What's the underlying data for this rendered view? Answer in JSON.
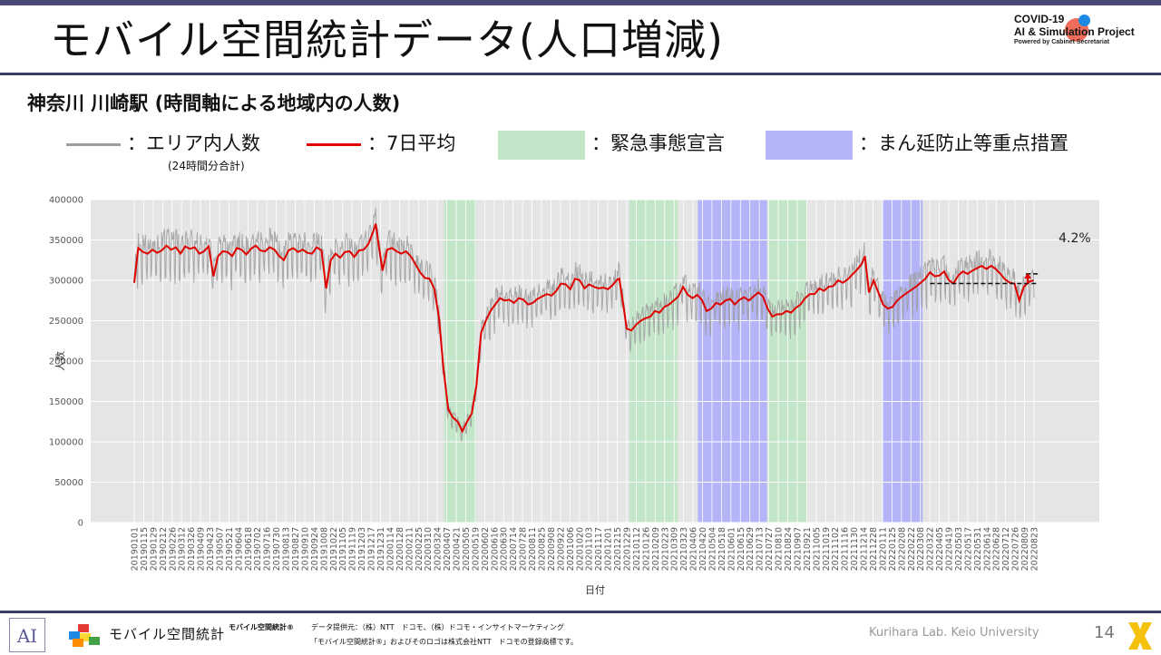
{
  "header": {
    "title": "モバイル空間統計データ(人口増減)",
    "logo": {
      "line1": "COVID-19",
      "line2": "AI & Simulation Project",
      "line3": "Powered by Cabinet Secretariat"
    }
  },
  "subtitle": "神奈川 川崎駅 (時間軸による地域内の人数)",
  "legend": {
    "area_label": "：エリア内人数",
    "area_note": "(24時間分合計)",
    "avg_label": "：7日平均",
    "emergency_label": "：緊急事態宣言",
    "priority_label": "：まん延防止等重点措置"
  },
  "colors": {
    "title_bar": "#3c3c6c",
    "raw_line": "#9e9e9e",
    "avg_line": "#e00000",
    "emergency": "#c3e6c8",
    "priority": "#b4b4f8",
    "plot_bg": "#e5e5e5"
  },
  "chart_data": {
    "type": "line",
    "title": "",
    "xlabel": "日付",
    "ylabel": "人数",
    "ylim": [
      0,
      400000
    ],
    "yticks": [
      0,
      50000,
      100000,
      150000,
      200000,
      250000,
      300000,
      350000,
      400000
    ],
    "ytick_labels": [
      "0",
      "50000",
      "100000",
      "150000",
      "200000",
      "250000",
      "300000",
      "350000",
      "400000"
    ],
    "x_start": "2019-01-01",
    "x_end": "2022-09-03",
    "xtick_labels": [
      "20190101",
      "20190115",
      "20190129",
      "20190212",
      "20190226",
      "20190312",
      "20190326",
      "20190409",
      "20190423",
      "20190507",
      "20190521",
      "20190604",
      "20190618",
      "20190702",
      "20190716",
      "20190730",
      "20190813",
      "20190827",
      "20190910",
      "20190924",
      "20191008",
      "20191022",
      "20191105",
      "20191119",
      "20191203",
      "20191217",
      "20191231",
      "20200114",
      "20200128",
      "20200211",
      "20200225",
      "20200310",
      "20200324",
      "20200407",
      "20200421",
      "20200505",
      "20200519",
      "20200602",
      "20200616",
      "20200630",
      "20200714",
      "20200728",
      "20200811",
      "20200825",
      "20200908",
      "20200922",
      "20201006",
      "20201020",
      "20201103",
      "20201117",
      "20201201",
      "20201215",
      "20201229",
      "20210112",
      "20210126",
      "20210209",
      "20210223",
      "20210309",
      "20210323",
      "20210406",
      "20210420",
      "20210504",
      "20210518",
      "20210601",
      "20210615",
      "20210629",
      "20210713",
      "20210727",
      "20210810",
      "20210824",
      "20210907",
      "20210921",
      "20211005",
      "20211019",
      "20211102",
      "20211116",
      "20211130",
      "20211214",
      "20211228",
      "20220111",
      "20220125",
      "20220208",
      "20220222",
      "20220308",
      "20220322",
      "20220405",
      "20220419",
      "20220503",
      "20220517",
      "20220531",
      "20220614",
      "20220628",
      "20220712",
      "20220726",
      "20220809",
      "20220823"
    ],
    "emergency_periods": [
      [
        "2020-04-07",
        "2020-05-25"
      ],
      [
        "2021-01-08",
        "2021-03-21"
      ],
      [
        "2021-08-02",
        "2021-09-30"
      ]
    ],
    "priority_periods": [
      [
        "2021-04-20",
        "2021-08-01"
      ],
      [
        "2022-01-21",
        "2022-03-21"
      ]
    ],
    "series": [
      {
        "key": "avg",
        "points": [
          [
            "2019-01-01",
            297000
          ],
          [
            "2019-01-07",
            340000
          ],
          [
            "2019-01-14",
            335000
          ],
          [
            "2019-01-21",
            333000
          ],
          [
            "2019-01-28",
            338000
          ],
          [
            "2019-02-04",
            334000
          ],
          [
            "2019-02-11",
            337000
          ],
          [
            "2019-02-18",
            343000
          ],
          [
            "2019-02-25",
            338000
          ],
          [
            "2019-03-04",
            341000
          ],
          [
            "2019-03-11",
            333000
          ],
          [
            "2019-03-18",
            342000
          ],
          [
            "2019-03-25",
            339000
          ],
          [
            "2019-04-01",
            341000
          ],
          [
            "2019-04-08",
            333000
          ],
          [
            "2019-04-15",
            336000
          ],
          [
            "2019-04-22",
            342000
          ],
          [
            "2019-04-29",
            305000
          ],
          [
            "2019-05-06",
            330000
          ],
          [
            "2019-05-13",
            336000
          ],
          [
            "2019-05-20",
            335000
          ],
          [
            "2019-05-27",
            330000
          ],
          [
            "2019-06-03",
            340000
          ],
          [
            "2019-06-10",
            338000
          ],
          [
            "2019-06-17",
            332000
          ],
          [
            "2019-06-24",
            339000
          ],
          [
            "2019-07-01",
            343000
          ],
          [
            "2019-07-08",
            337000
          ],
          [
            "2019-07-15",
            336000
          ],
          [
            "2019-07-22",
            341000
          ],
          [
            "2019-07-29",
            338000
          ],
          [
            "2019-08-05",
            330000
          ],
          [
            "2019-08-12",
            325000
          ],
          [
            "2019-08-19",
            337000
          ],
          [
            "2019-08-26",
            340000
          ],
          [
            "2019-09-02",
            335000
          ],
          [
            "2019-09-09",
            338000
          ],
          [
            "2019-09-16",
            334000
          ],
          [
            "2019-09-23",
            333000
          ],
          [
            "2019-09-30",
            341000
          ],
          [
            "2019-10-07",
            337000
          ],
          [
            "2019-10-14",
            290000
          ],
          [
            "2019-10-21",
            325000
          ],
          [
            "2019-10-28",
            333000
          ],
          [
            "2019-11-04",
            328000
          ],
          [
            "2019-11-11",
            335000
          ],
          [
            "2019-11-18",
            336000
          ],
          [
            "2019-11-25",
            329000
          ],
          [
            "2019-12-02",
            337000
          ],
          [
            "2019-12-09",
            338000
          ],
          [
            "2019-12-16",
            345000
          ],
          [
            "2019-12-23",
            360000
          ],
          [
            "2019-12-27",
            370000
          ],
          [
            "2019-12-31",
            345000
          ],
          [
            "2020-01-06",
            312000
          ],
          [
            "2020-01-13",
            338000
          ],
          [
            "2020-01-20",
            340000
          ],
          [
            "2020-01-27",
            336000
          ],
          [
            "2020-02-03",
            333000
          ],
          [
            "2020-02-10",
            336000
          ],
          [
            "2020-02-17",
            330000
          ],
          [
            "2020-02-24",
            320000
          ],
          [
            "2020-03-02",
            310000
          ],
          [
            "2020-03-09",
            303000
          ],
          [
            "2020-03-16",
            302000
          ],
          [
            "2020-03-23",
            290000
          ],
          [
            "2020-03-30",
            255000
          ],
          [
            "2020-04-06",
            190000
          ],
          [
            "2020-04-13",
            140000
          ],
          [
            "2020-04-20",
            130000
          ],
          [
            "2020-04-27",
            125000
          ],
          [
            "2020-05-04",
            113000
          ],
          [
            "2020-05-11",
            125000
          ],
          [
            "2020-05-18",
            135000
          ],
          [
            "2020-05-25",
            170000
          ],
          [
            "2020-06-01",
            235000
          ],
          [
            "2020-06-08",
            250000
          ],
          [
            "2020-06-15",
            262000
          ],
          [
            "2020-06-22",
            270000
          ],
          [
            "2020-06-29",
            278000
          ],
          [
            "2020-07-06",
            275000
          ],
          [
            "2020-07-13",
            276000
          ],
          [
            "2020-07-20",
            272000
          ],
          [
            "2020-07-27",
            278000
          ],
          [
            "2020-08-03",
            276000
          ],
          [
            "2020-08-10",
            270000
          ],
          [
            "2020-08-17",
            272000
          ],
          [
            "2020-08-24",
            277000
          ],
          [
            "2020-08-31",
            280000
          ],
          [
            "2020-09-07",
            283000
          ],
          [
            "2020-09-14",
            281000
          ],
          [
            "2020-09-21",
            287000
          ],
          [
            "2020-09-28",
            296000
          ],
          [
            "2020-10-05",
            295000
          ],
          [
            "2020-10-12",
            289000
          ],
          [
            "2020-10-19",
            302000
          ],
          [
            "2020-10-26",
            300000
          ],
          [
            "2020-11-02",
            290000
          ],
          [
            "2020-11-09",
            295000
          ],
          [
            "2020-11-16",
            292000
          ],
          [
            "2020-11-23",
            290000
          ],
          [
            "2020-11-30",
            291000
          ],
          [
            "2020-12-07",
            289000
          ],
          [
            "2020-12-14",
            294000
          ],
          [
            "2020-12-21",
            301000
          ],
          [
            "2020-12-24",
            302000
          ],
          [
            "2020-12-28",
            280000
          ],
          [
            "2021-01-04",
            240000
          ],
          [
            "2021-01-11",
            238000
          ],
          [
            "2021-01-18",
            245000
          ],
          [
            "2021-01-25",
            250000
          ],
          [
            "2021-02-01",
            253000
          ],
          [
            "2021-02-08",
            255000
          ],
          [
            "2021-02-15",
            262000
          ],
          [
            "2021-02-22",
            260000
          ],
          [
            "2021-03-01",
            267000
          ],
          [
            "2021-03-08",
            270000
          ],
          [
            "2021-03-15",
            275000
          ],
          [
            "2021-03-22",
            280000
          ],
          [
            "2021-03-29",
            292000
          ],
          [
            "2021-04-05",
            282000
          ],
          [
            "2021-04-12",
            278000
          ],
          [
            "2021-04-19",
            282000
          ],
          [
            "2021-04-26",
            276000
          ],
          [
            "2021-05-03",
            262000
          ],
          [
            "2021-05-10",
            265000
          ],
          [
            "2021-05-17",
            272000
          ],
          [
            "2021-05-24",
            270000
          ],
          [
            "2021-05-31",
            275000
          ],
          [
            "2021-06-07",
            277000
          ],
          [
            "2021-06-14",
            270000
          ],
          [
            "2021-06-21",
            276000
          ],
          [
            "2021-06-28",
            279000
          ],
          [
            "2021-07-05",
            275000
          ],
          [
            "2021-07-12",
            280000
          ],
          [
            "2021-07-19",
            285000
          ],
          [
            "2021-07-26",
            280000
          ],
          [
            "2021-08-02",
            265000
          ],
          [
            "2021-08-09",
            255000
          ],
          [
            "2021-08-16",
            258000
          ],
          [
            "2021-08-23",
            258000
          ],
          [
            "2021-08-30",
            262000
          ],
          [
            "2021-09-06",
            260000
          ],
          [
            "2021-09-13",
            266000
          ],
          [
            "2021-09-20",
            270000
          ],
          [
            "2021-09-27",
            278000
          ],
          [
            "2021-10-04",
            283000
          ],
          [
            "2021-10-11",
            283000
          ],
          [
            "2021-10-18",
            290000
          ],
          [
            "2021-10-25",
            287000
          ],
          [
            "2021-11-01",
            292000
          ],
          [
            "2021-11-08",
            293000
          ],
          [
            "2021-11-15",
            300000
          ],
          [
            "2021-11-22",
            297000
          ],
          [
            "2021-11-29",
            301000
          ],
          [
            "2021-12-06",
            307000
          ],
          [
            "2021-12-13",
            313000
          ],
          [
            "2021-12-20",
            320000
          ],
          [
            "2021-12-25",
            330000
          ],
          [
            "2021-12-31",
            285000
          ],
          [
            "2022-01-07",
            300000
          ],
          [
            "2022-01-14",
            285000
          ],
          [
            "2022-01-21",
            270000
          ],
          [
            "2022-01-28",
            265000
          ],
          [
            "2022-02-04",
            267000
          ],
          [
            "2022-02-11",
            275000
          ],
          [
            "2022-02-18",
            280000
          ],
          [
            "2022-02-25",
            284000
          ],
          [
            "2022-03-04",
            288000
          ],
          [
            "2022-03-11",
            292000
          ],
          [
            "2022-03-18",
            297000
          ],
          [
            "2022-03-25",
            302000
          ],
          [
            "2022-04-01",
            310000
          ],
          [
            "2022-04-08",
            305000
          ],
          [
            "2022-04-15",
            306000
          ],
          [
            "2022-04-22",
            311000
          ],
          [
            "2022-04-29",
            300000
          ],
          [
            "2022-05-06",
            296000
          ],
          [
            "2022-05-13",
            306000
          ],
          [
            "2022-05-20",
            311000
          ],
          [
            "2022-05-27",
            308000
          ],
          [
            "2022-06-03",
            312000
          ],
          [
            "2022-06-10",
            315000
          ],
          [
            "2022-06-17",
            318000
          ],
          [
            "2022-06-24",
            314000
          ],
          [
            "2022-07-01",
            318000
          ],
          [
            "2022-07-08",
            314000
          ],
          [
            "2022-07-15",
            308000
          ],
          [
            "2022-07-22",
            301000
          ],
          [
            "2022-07-29",
            297000
          ],
          [
            "2022-08-05",
            296000
          ],
          [
            "2022-08-12",
            275000
          ],
          [
            "2022-08-19",
            292000
          ],
          [
            "2022-08-26",
            298000
          ],
          [
            "2022-09-02",
            300000
          ]
        ]
      }
    ],
    "annotation": {
      "label": "4.2%",
      "baseline": 296000,
      "baseline_from": "2022-04-01",
      "level": 308000,
      "level_from": "2022-08-22",
      "until": "2022-09-10"
    }
  },
  "footer": {
    "logo_text": "モバイル空間統計",
    "product": "モバイル空間統計®",
    "source1": "データ提供元：（株）NTT　ドコモ、（株）ドコモ・インサイトマーケティング",
    "source2": "「モバイル空間統計®」およびそのロゴは株式会社NTT　ドコモの登録商標です。",
    "lab": "Kurihara Lab. Keio University",
    "page": "14"
  }
}
